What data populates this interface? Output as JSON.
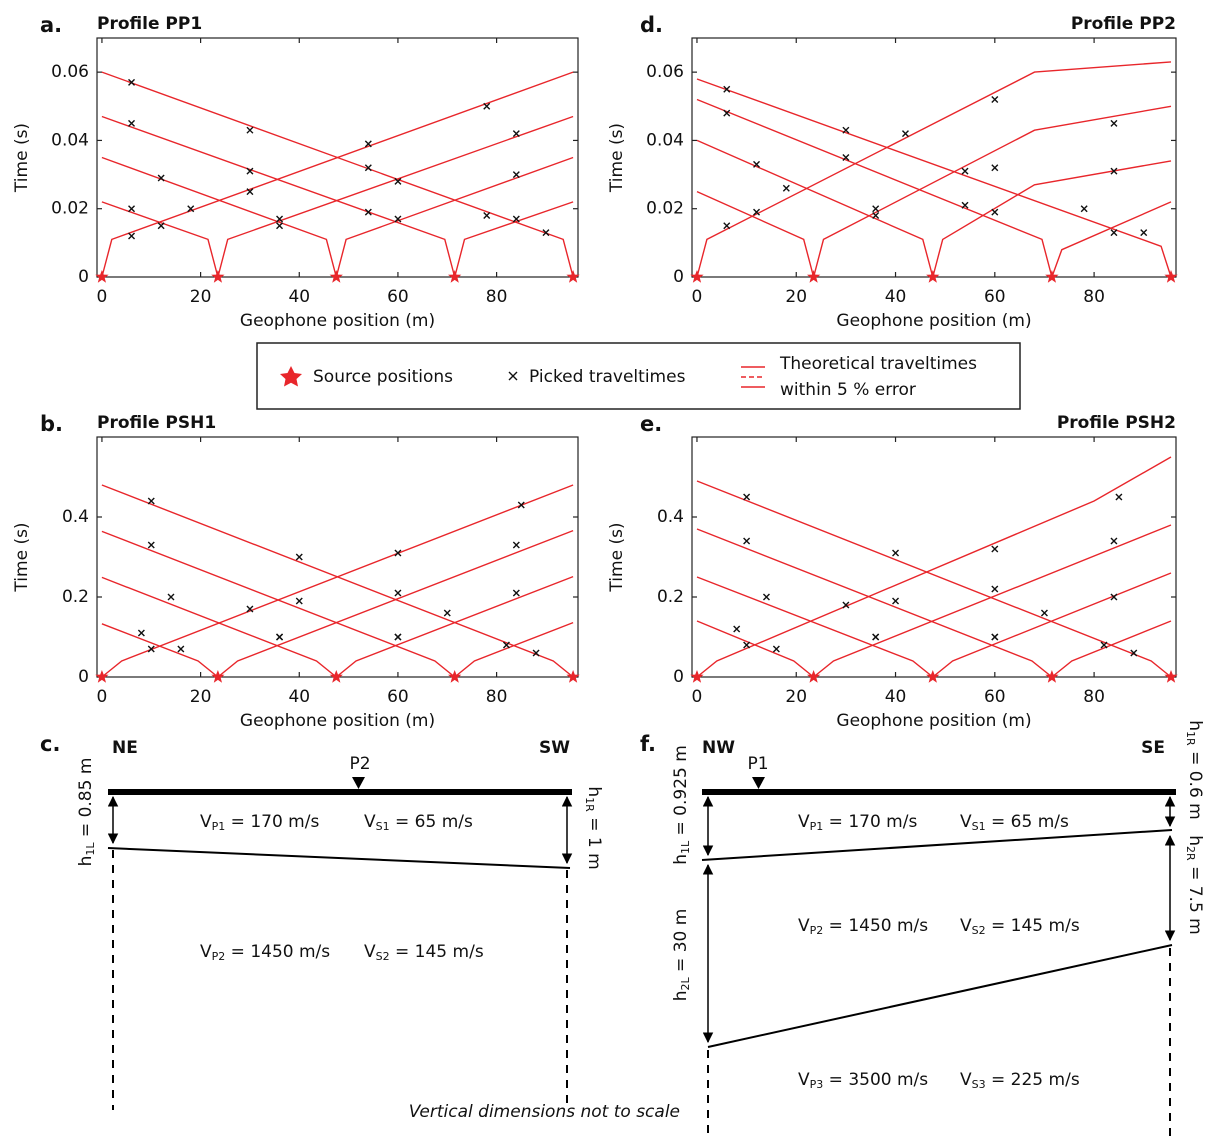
{
  "chart_data": [
    {
      "type": "line",
      "panel_label": "a.",
      "title": "Profile PP1",
      "x_label": "Geophone position (m)",
      "y_label": "Time (s)",
      "xlim": [
        -1,
        96.5
      ],
      "ylim": [
        0,
        0.07
      ],
      "xticks": [
        0,
        20,
        40,
        60,
        80
      ],
      "yticks": [
        0,
        0.02,
        0.04,
        0.06
      ],
      "sources": {
        "color": "#e8262b",
        "x": [
          0,
          23.5,
          47.5,
          71.5,
          95.5
        ],
        "values": [
          0,
          0,
          0,
          0,
          0
        ]
      },
      "series": [
        {
          "color": "#e8262b",
          "x": [
            0,
            2,
            95.5
          ],
          "values": [
            0,
            0.011,
            0.06
          ]
        },
        {
          "color": "#e8262b",
          "x": [
            0,
            21.5,
            23.5,
            25.5,
            95.5
          ],
          "values": [
            0.022,
            0.011,
            0,
            0.011,
            0.047
          ]
        },
        {
          "color": "#e8262b",
          "x": [
            0,
            45.5,
            47.5,
            49.5,
            95.5
          ],
          "values": [
            0.035,
            0.011,
            0,
            0.011,
            0.035
          ]
        },
        {
          "color": "#e8262b",
          "x": [
            0,
            69.5,
            71.5,
            73.5,
            95.5
          ],
          "values": [
            0.047,
            0.011,
            0,
            0.011,
            0.022
          ]
        },
        {
          "color": "#e8262b",
          "x": [
            0,
            93.5,
            95.5
          ],
          "values": [
            0.06,
            0.011,
            0
          ]
        }
      ],
      "picks": {
        "x": [
          6,
          18,
          30,
          54,
          78,
          6,
          12,
          36,
          60,
          84,
          12,
          36,
          60,
          84,
          6,
          30,
          54,
          84,
          6,
          30,
          54,
          78,
          90
        ],
        "values": [
          0.012,
          0.02,
          0.025,
          0.039,
          0.05,
          0.02,
          0.015,
          0.017,
          0.028,
          0.042,
          0.029,
          0.015,
          0.017,
          0.03,
          0.045,
          0.031,
          0.019,
          0.017,
          0.057,
          0.043,
          0.032,
          0.018,
          0.013
        ]
      }
    },
    {
      "type": "line",
      "panel_label": "d.",
      "title": "Profile PP2",
      "x_label": "Geophone position (m)",
      "y_label": "Time (s)",
      "xlim": [
        -1,
        96.5
      ],
      "ylim": [
        0,
        0.07
      ],
      "xticks": [
        0,
        20,
        40,
        60,
        80
      ],
      "yticks": [
        0,
        0.02,
        0.04,
        0.06
      ],
      "sources": {
        "color": "#e8262b",
        "x": [
          0,
          23.5,
          47.5,
          71.5,
          95.5
        ],
        "values": [
          0,
          0,
          0,
          0,
          0
        ]
      },
      "series": [
        {
          "color": "#e8262b",
          "x": [
            0,
            2,
            68,
            95.5
          ],
          "values": [
            0,
            0.011,
            0.06,
            0.063
          ]
        },
        {
          "color": "#e8262b",
          "x": [
            0,
            21.5,
            23.5,
            25.5,
            68,
            95.5
          ],
          "values": [
            0.025,
            0.011,
            0,
            0.011,
            0.043,
            0.05
          ]
        },
        {
          "color": "#e8262b",
          "x": [
            0,
            45.5,
            47.5,
            49.5,
            68,
            95.5
          ],
          "values": [
            0.04,
            0.011,
            0,
            0.011,
            0.027,
            0.034
          ]
        },
        {
          "color": "#e8262b",
          "x": [
            0,
            69.5,
            71.5,
            73.5,
            95.5
          ],
          "values": [
            0.052,
            0.011,
            0,
            0.008,
            0.022
          ]
        },
        {
          "color": "#e8262b",
          "x": [
            0,
            93.5,
            95.5
          ],
          "values": [
            0.058,
            0.009,
            0
          ]
        }
      ],
      "picks": {
        "x": [
          6,
          18,
          42,
          60,
          12,
          36,
          60,
          84,
          12,
          36,
          60,
          84,
          6,
          30,
          54,
          84,
          6,
          30,
          54,
          78,
          90
        ],
        "values": [
          0.015,
          0.026,
          0.042,
          0.052,
          0.019,
          0.02,
          0.032,
          0.045,
          0.033,
          0.018,
          0.019,
          0.031,
          0.048,
          0.035,
          0.021,
          0.013,
          0.055,
          0.043,
          0.031,
          0.02,
          0.013
        ]
      }
    },
    {
      "type": "line",
      "panel_label": "b.",
      "title": "Profile PSH1",
      "x_label": "Geophone position (m)",
      "y_label": "Time (s)",
      "xlim": [
        -1,
        96.5
      ],
      "ylim": [
        0,
        0.6
      ],
      "xticks": [
        0,
        20,
        40,
        60,
        80
      ],
      "yticks": [
        0,
        0.2,
        0.4
      ],
      "sources": {
        "color": "#e8262b",
        "x": [
          0,
          23.5,
          47.5,
          71.5,
          95.5
        ],
        "values": [
          0,
          0,
          0,
          0,
          0
        ]
      },
      "series": [
        {
          "color": "#e8262b",
          "x": [
            0,
            4,
            95.5
          ],
          "values": [
            0,
            0.04,
            0.48
          ]
        },
        {
          "color": "#e8262b",
          "x": [
            0,
            19.5,
            23.5,
            27.5,
            95.5
          ],
          "values": [
            0.133,
            0.04,
            0,
            0.04,
            0.366
          ]
        },
        {
          "color": "#e8262b",
          "x": [
            0,
            43.5,
            47.5,
            51.5,
            95.5
          ],
          "values": [
            0.249,
            0.04,
            0,
            0.04,
            0.251
          ]
        },
        {
          "color": "#e8262b",
          "x": [
            0,
            67.5,
            71.5,
            75.5,
            95.5
          ],
          "values": [
            0.364,
            0.04,
            0,
            0.04,
            0.136
          ]
        },
        {
          "color": "#e8262b",
          "x": [
            0,
            91.5,
            95.5
          ],
          "values": [
            0.48,
            0.04,
            0
          ]
        }
      ],
      "picks": {
        "x": [
          10,
          30,
          60,
          85,
          8,
          16,
          36,
          60,
          84,
          14,
          36,
          60,
          84,
          10,
          40,
          60,
          82,
          10,
          40,
          70,
          88
        ],
        "values": [
          0.07,
          0.17,
          0.31,
          0.43,
          0.11,
          0.07,
          0.1,
          0.21,
          0.33,
          0.2,
          0.1,
          0.1,
          0.21,
          0.33,
          0.19,
          0.1,
          0.08,
          0.44,
          0.3,
          0.16,
          0.06
        ]
      }
    },
    {
      "type": "line",
      "panel_label": "e.",
      "title": "Profile PSH2",
      "x_label": "Geophone position (m)",
      "y_label": "Time (s)",
      "xlim": [
        -1,
        96.5
      ],
      "ylim": [
        0,
        0.6
      ],
      "xticks": [
        0,
        20,
        40,
        60,
        80
      ],
      "yticks": [
        0,
        0.2,
        0.4
      ],
      "sources": {
        "color": "#e8262b",
        "x": [
          0,
          23.5,
          47.5,
          71.5,
          95.5
        ],
        "values": [
          0,
          0,
          0,
          0,
          0
        ]
      },
      "series": [
        {
          "color": "#e8262b",
          "x": [
            0,
            4,
            80,
            95.5
          ],
          "values": [
            0,
            0.04,
            0.44,
            0.55
          ]
        },
        {
          "color": "#e8262b",
          "x": [
            0,
            19.5,
            23.5,
            27.5,
            95.5
          ],
          "values": [
            0.14,
            0.04,
            0,
            0.04,
            0.38
          ]
        },
        {
          "color": "#e8262b",
          "x": [
            0,
            43.5,
            47.5,
            51.5,
            95.5
          ],
          "values": [
            0.25,
            0.04,
            0,
            0.04,
            0.26
          ]
        },
        {
          "color": "#e8262b",
          "x": [
            0,
            67.5,
            71.5,
            75.5,
            95.5
          ],
          "values": [
            0.37,
            0.04,
            0,
            0.04,
            0.14
          ]
        },
        {
          "color": "#e8262b",
          "x": [
            0,
            91.5,
            95.5
          ],
          "values": [
            0.49,
            0.04,
            0
          ]
        }
      ],
      "picks": {
        "x": [
          10,
          30,
          60,
          85,
          8,
          16,
          36,
          60,
          84,
          14,
          36,
          60,
          84,
          10,
          40,
          60,
          82,
          10,
          40,
          70,
          88
        ],
        "values": [
          0.08,
          0.18,
          0.32,
          0.45,
          0.12,
          0.07,
          0.1,
          0.22,
          0.34,
          0.2,
          0.1,
          0.1,
          0.2,
          0.34,
          0.19,
          0.1,
          0.08,
          0.45,
          0.31,
          0.16,
          0.06
        ]
      }
    }
  ],
  "legend": {
    "sources": "Source positions",
    "picks": "Picked traveltimes",
    "theory_line1": "Theoretical traveltimes",
    "theory_line2": "within 5 % error"
  },
  "cross_sections": [
    {
      "panel_label": "c.",
      "left": "NE",
      "right": "SW",
      "marker": "P2",
      "labels": {
        "h1l": {
          "symbol": "h",
          "sub": "1L",
          "text": " = 0.85 m"
        },
        "h1r": {
          "symbol": "h",
          "sub": "1R",
          "text": " = 1 m"
        },
        "vp1": {
          "symbol": "V",
          "sub": "P1",
          "text": " = 170 m/s"
        },
        "vs1": {
          "symbol": "V",
          "sub": "S1",
          "text": " = 65 m/s"
        },
        "vp2": {
          "symbol": "V",
          "sub": "P2",
          "text": " = 1450 m/s"
        },
        "vs2": {
          "symbol": "V",
          "sub": "S2",
          "text": " = 145 m/s"
        }
      }
    },
    {
      "panel_label": "f.",
      "left": "NW",
      "right": "SE",
      "marker": "P1",
      "labels": {
        "h1l": {
          "symbol": "h",
          "sub": "1L",
          "text": " = 0.925 m"
        },
        "h2l": {
          "symbol": "h",
          "sub": "2L",
          "text": " = 30 m"
        },
        "h1r": {
          "symbol": "h",
          "sub": "1R",
          "text": " = 0.6 m"
        },
        "h2r": {
          "symbol": "h",
          "sub": "2R",
          "text": " = 7.5 m"
        },
        "vp1": {
          "symbol": "V",
          "sub": "P1",
          "text": " = 170 m/s"
        },
        "vs1": {
          "symbol": "V",
          "sub": "S1",
          "text": " = 65 m/s"
        },
        "vp2": {
          "symbol": "V",
          "sub": "P2",
          "text": " = 1450 m/s"
        },
        "vs2": {
          "symbol": "V",
          "sub": "S2",
          "text": " = 145 m/s"
        },
        "vp3": {
          "symbol": "V",
          "sub": "P3",
          "text": " = 3500 m/s"
        },
        "vs3": {
          "symbol": "V",
          "sub": "S3",
          "text": " = 225 m/s"
        }
      }
    }
  ],
  "note": "Vertical dimensions not to scale"
}
